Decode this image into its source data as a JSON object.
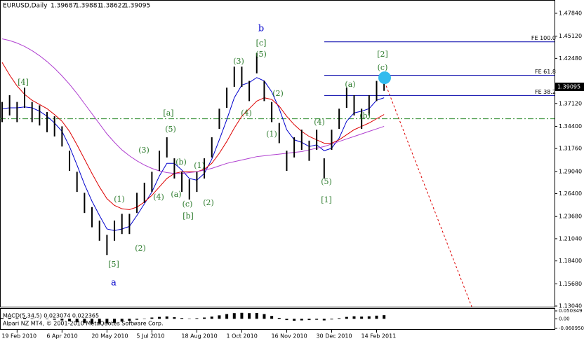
{
  "chart_data": [
    {
      "type": "ohlc",
      "title": "EURUSD,Daily",
      "last_bar": {
        "open": 1.39687,
        "high": 1.39881,
        "low": 1.38622,
        "close": 1.39095
      },
      "categories": [
        null,
        null,
        "19 Feb 2010",
        null,
        null,
        null,
        null,
        null,
        "6 Apr 2010",
        null,
        null,
        null,
        null,
        null,
        "20 May 2010",
        null,
        null,
        null,
        null,
        null,
        "5 Jul 2010",
        null,
        null,
        null,
        null,
        null,
        "18 Aug 2010",
        null,
        null,
        null,
        null,
        null,
        "1 Oct 2010",
        null,
        null,
        null,
        null,
        null,
        "16 Nov 2010",
        null,
        null,
        null,
        null,
        null,
        "30 Dec 2010",
        null,
        null,
        null,
        null,
        null,
        "14 Feb 2011",
        null
      ],
      "high": [
        1.373,
        1.381,
        1.373,
        1.39,
        1.373,
        1.369,
        1.361,
        1.356,
        1.344,
        1.315,
        1.29,
        1.265,
        1.248,
        1.232,
        1.215,
        1.232,
        1.24,
        1.24,
        1.265,
        1.277,
        1.29,
        1.315,
        1.331,
        1.306,
        1.29,
        1.281,
        1.29,
        1.306,
        1.331,
        1.365,
        1.39,
        1.415,
        1.415,
        1.398,
        1.431,
        1.398,
        1.373,
        1.348,
        1.315,
        1.331,
        1.34,
        1.327,
        1.34,
        1.306,
        1.34,
        1.365,
        1.39,
        1.381,
        1.365,
        1.381,
        1.398,
        1.39881
      ],
      "low": [
        1.349,
        1.357,
        1.349,
        1.366,
        1.349,
        1.345,
        1.337,
        1.332,
        1.32,
        1.291,
        1.266,
        1.241,
        1.224,
        1.208,
        1.191,
        1.208,
        1.216,
        1.216,
        1.241,
        1.253,
        1.266,
        1.291,
        1.307,
        1.282,
        1.266,
        1.257,
        1.266,
        1.282,
        1.307,
        1.341,
        1.366,
        1.391,
        1.391,
        1.374,
        1.407,
        1.374,
        1.349,
        1.324,
        1.291,
        1.307,
        1.316,
        1.303,
        1.316,
        1.282,
        1.316,
        1.341,
        1.366,
        1.357,
        1.341,
        1.357,
        1.374,
        1.38622
      ],
      "bar_color": "#000000",
      "series": [
        {
          "color": "#0000cc",
          "values": [
            1.365,
            1.366,
            1.366,
            1.367,
            1.366,
            1.362,
            1.356,
            1.348,
            1.338,
            1.32,
            1.298,
            1.275,
            1.255,
            1.238,
            1.222,
            1.22,
            1.222,
            1.225,
            1.238,
            1.252,
            1.266,
            1.285,
            1.3,
            1.3,
            1.292,
            1.282,
            1.28,
            1.288,
            1.305,
            1.328,
            1.352,
            1.378,
            1.393,
            1.396,
            1.402,
            1.398,
            1.385,
            1.365,
            1.34,
            1.328,
            1.325,
            1.32,
            1.322,
            1.315,
            1.318,
            1.33,
            1.35,
            1.36,
            1.362,
            1.365,
            1.375,
            1.378
          ]
        },
        {
          "color": "#dd0000",
          "values": [
            1.42,
            1.405,
            1.392,
            1.382,
            1.375,
            1.37,
            1.365,
            1.358,
            1.35,
            1.338,
            1.322,
            1.305,
            1.288,
            1.272,
            1.258,
            1.25,
            1.246,
            1.245,
            1.248,
            1.254,
            1.262,
            1.272,
            1.282,
            1.288,
            1.29,
            1.29,
            1.29,
            1.293,
            1.3,
            1.312,
            1.326,
            1.342,
            1.356,
            1.365,
            1.374,
            1.378,
            1.376,
            1.368,
            1.356,
            1.346,
            1.338,
            1.332,
            1.328,
            1.324,
            1.324,
            1.328,
            1.334,
            1.34,
            1.344,
            1.348,
            1.353,
            1.358
          ]
        },
        {
          "color": "#b040d0",
          "values": [
            1.448,
            1.446,
            1.443,
            1.439,
            1.434,
            1.428,
            1.421,
            1.413,
            1.404,
            1.394,
            1.383,
            1.371,
            1.359,
            1.347,
            1.335,
            1.325,
            1.316,
            1.309,
            1.303,
            1.298,
            1.294,
            1.291,
            1.289,
            1.288,
            1.288,
            1.289,
            1.29,
            1.292,
            1.294,
            1.297,
            1.3,
            1.302,
            1.304,
            1.306,
            1.308,
            1.309,
            1.31,
            1.311,
            1.312,
            1.313,
            1.314,
            1.316,
            1.318,
            1.32,
            1.323,
            1.326,
            1.329,
            1.332,
            1.335,
            1.338,
            1.341,
            1.344
          ]
        }
      ],
      "fib_levels": [
        {
          "label": "FE 100.0",
          "value": 1.4445
        },
        {
          "label": "FE 61.8",
          "value": 1.4046
        },
        {
          "label": "FE 38.2",
          "value": 1.3807
        }
      ],
      "order_level": 1.353,
      "ylim": [
        1.1296,
        1.4942
      ],
      "yticks": [
        {
          "value": 1.4784,
          "label": "1.47840"
        },
        {
          "value": 1.4512,
          "label": "1.45120"
        },
        {
          "value": 1.4248,
          "label": "1.42480"
        },
        {
          "value": 1.3712,
          "label": "1.37120"
        },
        {
          "value": 1.344,
          "label": "1.34400"
        },
        {
          "value": 1.3176,
          "label": "1.31760"
        },
        {
          "value": 1.2904,
          "label": "1.29040"
        },
        {
          "value": 1.264,
          "label": "1.26400"
        },
        {
          "value": 1.2368,
          "label": "1.23680"
        },
        {
          "value": 1.2104,
          "label": "1.21040"
        },
        {
          "value": 1.184,
          "label": "1.18400"
        },
        {
          "value": 1.1568,
          "label": "1.15680"
        },
        {
          "value": 1.1304,
          "label": "1.13040"
        }
      ],
      "annotations": [
        "[4]",
        "[a]",
        "(5)",
        "(3)",
        "(4)",
        "(b)",
        "(1)",
        "(a)",
        "(c)",
        "[b]",
        "(2)",
        "(1)",
        "(2)",
        "[5]",
        "a",
        "b",
        "[c]",
        "(5)",
        "(3)",
        "(2)",
        "(4)",
        "(1)",
        "(4)",
        "(5)",
        "[1]",
        "(a)",
        "(b)",
        "[2]",
        "(c)"
      ]
    },
    {
      "type": "histogram-panel",
      "title": "MACD(5,34,5) 0.023074 0.022365",
      "credit": "Alpari NZ MT4, © 2001-2010 MetaQuotes Software Corp.",
      "color": "#000000",
      "values": [
        0.005,
        0.006,
        0.004,
        0.006,
        0.003,
        0.001,
        -0.003,
        -0.006,
        -0.01,
        -0.016,
        -0.022,
        -0.027,
        -0.03,
        -0.031,
        -0.03,
        -0.025,
        -0.018,
        -0.012,
        -0.006,
        0.002,
        0.008,
        0.012,
        0.015,
        0.01,
        0.005,
        0.002,
        0.004,
        0.008,
        0.014,
        0.022,
        0.03,
        0.036,
        0.038,
        0.036,
        0.037,
        0.03,
        0.018,
        0.006,
        -0.008,
        -0.012,
        -0.01,
        -0.008,
        -0.006,
        -0.01,
        -0.004,
        0.004,
        0.012,
        0.016,
        0.014,
        0.016,
        0.02,
        0.023
      ],
      "ylim": [
        -0.0609,
        0.0503
      ],
      "yticks": [
        0.050349,
        {
          "value": 0,
          "label": "0.00"
        },
        {
          "value": -0.06095,
          "label": "-0.060950"
        }
      ]
    }
  ]
}
